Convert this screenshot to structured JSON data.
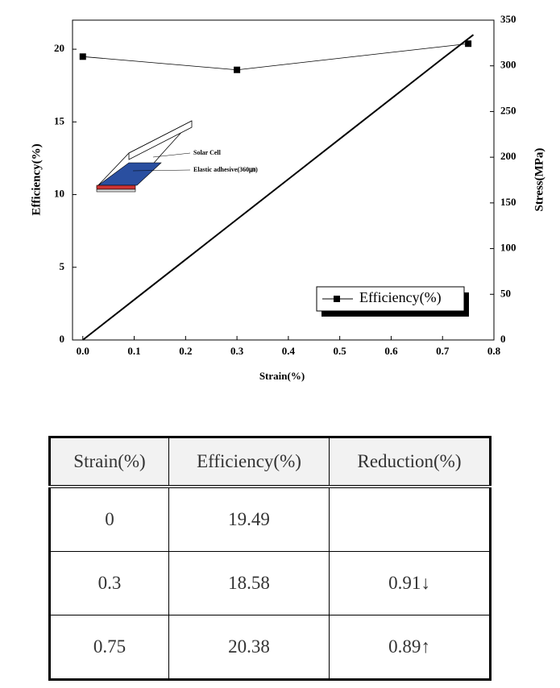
{
  "chart_data": {
    "type": "line",
    "x_label": "Strain(%)",
    "y_label": "Efficiency(%)",
    "y2_label": "Stress(MPa)",
    "xlim": [
      -0.02,
      0.8
    ],
    "xticks": [
      {
        "value": 0,
        "label": "0.0"
      },
      0.1,
      0.2,
      0.3,
      0.4,
      0.5,
      0.6,
      0.7,
      0.8
    ],
    "ylim": [
      0,
      22
    ],
    "yticks": [
      0,
      5,
      10,
      15,
      20
    ],
    "y2lim": [
      0,
      350
    ],
    "y2ticks": [
      0,
      50,
      100,
      150,
      200,
      250,
      300,
      350
    ],
    "legend": "lower right",
    "annotations": [
      "Solar Cell",
      "Elastic adhesive(360㎛)"
    ],
    "series": [
      {
        "name": "Efficiency(%)",
        "color": "#000000",
        "marker": "square",
        "x": [
          0,
          0.3,
          0.75
        ],
        "values": [
          19.49,
          18.58,
          20.38
        ]
      },
      {
        "color": "#000000",
        "axis": "y2",
        "x": [
          0,
          0.1,
          0.2,
          0.3,
          0.4,
          0.5,
          0.6,
          0.7,
          0.76
        ],
        "values": [
          0,
          44,
          88,
          132,
          176,
          220,
          264,
          308,
          334
        ]
      }
    ]
  },
  "table": {
    "header": [
      "Strain(%)",
      "Efficiency(%)",
      "Reduction(%)"
    ],
    "rows": [
      [
        "0",
        "19.49"
      ],
      [
        "0.3",
        "18.58",
        "0.91↓"
      ],
      [
        "0.75",
        "20.38",
        "0.89↑"
      ]
    ]
  }
}
